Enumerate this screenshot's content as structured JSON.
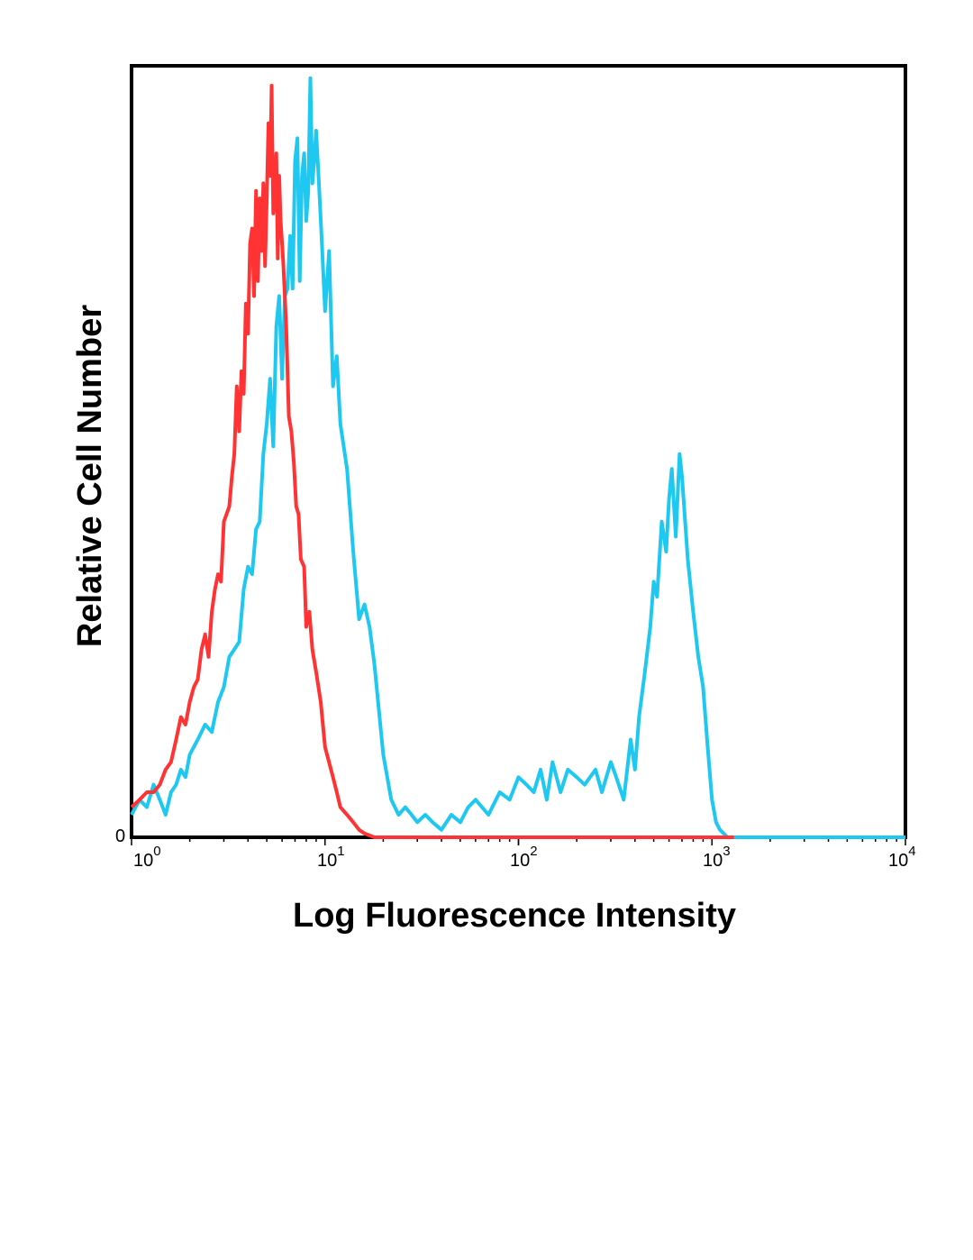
{
  "chart_data": {
    "type": "line",
    "title": "",
    "xlabel": "Log Fluorescence Intensity",
    "ylabel": "Relative Cell Number",
    "xscale": "log",
    "xlim": [
      1,
      10000
    ],
    "ylim": [
      0,
      100
    ],
    "grid": false,
    "legend": "none",
    "x_ticks": [
      {
        "base": "10",
        "exp": "0"
      },
      {
        "base": "10",
        "exp": "1"
      },
      {
        "base": "10",
        "exp": "2"
      },
      {
        "base": "10",
        "exp": "3"
      },
      {
        "base": "10",
        "exp": "4"
      }
    ],
    "y_tick_label": "0",
    "series": [
      {
        "color": "#ff3333",
        "x": [
          1.0,
          1.1,
          1.2,
          1.3,
          1.4,
          1.5,
          1.6,
          1.7,
          1.8,
          1.9,
          2.0,
          2.1,
          2.2,
          2.3,
          2.4,
          2.5,
          2.6,
          2.7,
          2.8,
          2.9,
          3.0,
          3.1,
          3.2,
          3.3,
          3.4,
          3.5,
          3.6,
          3.7,
          3.8,
          3.9,
          4.0,
          4.1,
          4.2,
          4.3,
          4.4,
          4.5,
          4.6,
          4.7,
          4.8,
          4.9,
          5.0,
          5.1,
          5.2,
          5.3,
          5.4,
          5.5,
          5.6,
          5.7,
          5.8,
          5.9,
          6.0,
          6.1,
          6.3,
          6.5,
          6.7,
          6.9,
          7.1,
          7.3,
          7.5,
          7.8,
          8.0,
          8.3,
          8.6,
          9.0,
          9.5,
          10,
          11,
          11.5,
          12,
          13,
          14,
          15,
          16,
          18,
          20,
          22,
          25,
          30,
          40,
          100,
          1000,
          1300
        ],
        "y": [
          4,
          5,
          6,
          6,
          7,
          9,
          10,
          13,
          16,
          15,
          18,
          20,
          21,
          25,
          27,
          24,
          30,
          33,
          35,
          34,
          42,
          43,
          44,
          48,
          51,
          60,
          54,
          62,
          59,
          71,
          67,
          79,
          81,
          72,
          86,
          74,
          85,
          78,
          87,
          76,
          85,
          95,
          88,
          100,
          83,
          86,
          91,
          77,
          88,
          82,
          79,
          76,
          68,
          56,
          54,
          50,
          44,
          43,
          37,
          36,
          28,
          30,
          25,
          22,
          18,
          12,
          8,
          6,
          4,
          3,
          2,
          1,
          0.5,
          0,
          0,
          0,
          0,
          0,
          0,
          0,
          0,
          0
        ]
      },
      {
        "color": "#1ec8f0",
        "x": [
          1.0,
          1.1,
          1.2,
          1.3,
          1.4,
          1.5,
          1.6,
          1.7,
          1.8,
          1.9,
          2.0,
          2.2,
          2.4,
          2.6,
          2.8,
          3.0,
          3.2,
          3.4,
          3.6,
          3.8,
          4.0,
          4.2,
          4.4,
          4.6,
          4.8,
          5.0,
          5.2,
          5.4,
          5.6,
          5.8,
          6.0,
          6.2,
          6.4,
          6.6,
          6.8,
          7.0,
          7.2,
          7.4,
          7.6,
          7.8,
          8.0,
          8.2,
          8.4,
          8.6,
          8.8,
          9.0,
          9.3,
          9.6,
          10.0,
          10.5,
          11,
          11.5,
          12,
          13,
          14,
          15,
          16,
          17,
          18,
          20,
          22,
          24,
          26,
          28,
          30,
          33,
          36,
          40,
          45,
          50,
          55,
          60,
          70,
          80,
          90,
          100,
          110,
          120,
          130,
          140,
          150,
          165,
          180,
          200,
          220,
          250,
          270,
          300,
          320,
          350,
          380,
          400,
          420,
          450,
          480,
          500,
          520,
          550,
          580,
          600,
          620,
          650,
          680,
          700,
          750,
          800,
          850,
          900,
          950,
          1000,
          1050,
          1100,
          1150,
          1200,
          1300,
          1500,
          2000,
          5000,
          10000
        ],
        "y": [
          3,
          5,
          4,
          7,
          5,
          3,
          6,
          7,
          9,
          8,
          11,
          13,
          15,
          14,
          18,
          20,
          24,
          25,
          26,
          33,
          36,
          35,
          41,
          42,
          51,
          55,
          61,
          52,
          68,
          72,
          61,
          72,
          73,
          80,
          73,
          90,
          93,
          74,
          88,
          91,
          82,
          86,
          101,
          87,
          90,
          94,
          87,
          80,
          70,
          78,
          60,
          64,
          55,
          49,
          38,
          29,
          31,
          28,
          23,
          11,
          5,
          3,
          4,
          3,
          2,
          3,
          2,
          1,
          3,
          2,
          4,
          5,
          3,
          6,
          5,
          8,
          7,
          6,
          9,
          5,
          10,
          6,
          9,
          8,
          7,
          9,
          6,
          10,
          8,
          5,
          13,
          9,
          16,
          22,
          28,
          34,
          32,
          42,
          38,
          45,
          49,
          40,
          51,
          48,
          37,
          30,
          24,
          20,
          12,
          5,
          2,
          1,
          0.5,
          0,
          0,
          0,
          0,
          0,
          0
        ]
      }
    ]
  }
}
